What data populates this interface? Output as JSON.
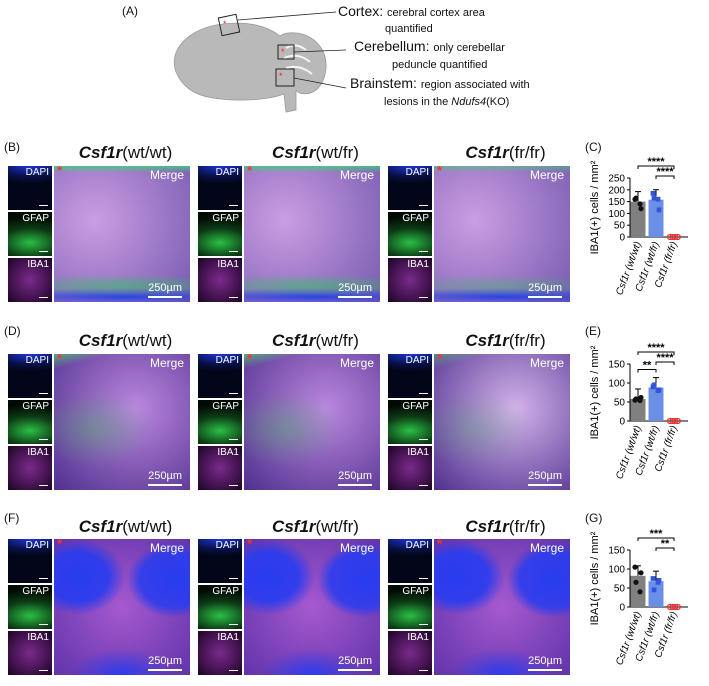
{
  "panel_letters": {
    "A": "(A)",
    "B": "(B)",
    "C": "(C)",
    "D": "(D)",
    "E": "(E)",
    "F": "(F)",
    "G": "(G)"
  },
  "brain_schematic": {
    "cortex": {
      "title": "Cortex:",
      "desc": "cerebral cortex area",
      "desc2": "quantified"
    },
    "cerebellum": {
      "title": "Cerebellum:",
      "desc": "only cerebellar",
      "desc2": "peduncle quantified"
    },
    "brainstem": {
      "title": "Brainstem:",
      "desc": "region associated with",
      "desc2_pre": "lesions in the ",
      "desc2_gene": "Ndufs4",
      "desc2_post": "(KO)"
    }
  },
  "genotypes": [
    {
      "gene": "Csf1r",
      "label": "(wt/wt)"
    },
    {
      "gene": "Csf1r",
      "label": "(wt/fr)"
    },
    {
      "gene": "Csf1r",
      "label": "(fr/fr)"
    }
  ],
  "channels": {
    "dapi": "DAPI",
    "gfap": "GFAP",
    "iba1": "IBA1",
    "merge": "Merge",
    "scale": "250µm",
    "star": "*"
  },
  "colors": {
    "dapi": "#1a2fd0",
    "gfap": "#2fd14a",
    "iba1": "#b73ad6",
    "merge_bg": "#3a1f8a",
    "bar_wt": "#808080",
    "bar_het": "#6c8fe6",
    "dot_ko": "#e83030"
  },
  "chart_data": [
    {
      "type": "bar",
      "panel": "C",
      "ylabel": "IBA1(+) cells / mm²",
      "ylim": [
        0,
        250
      ],
      "yticks": [
        0,
        50,
        100,
        150,
        200,
        250
      ],
      "categories": [
        "Csf1r (wt/wt)",
        "Csf1r (wt/fr)",
        "Csf1r (fr/fr)"
      ],
      "values": [
        150,
        158,
        0
      ],
      "points": [
        [
          160,
          120,
          165,
          140
        ],
        [
          185,
          115,
          165,
          160
        ],
        [
          0,
          0,
          0,
          0
        ]
      ],
      "significance": [
        {
          "from": 0,
          "to": 2,
          "label": "****"
        },
        {
          "from": 1,
          "to": 2,
          "label": "****"
        }
      ]
    },
    {
      "type": "bar",
      "panel": "E",
      "ylabel": "IBA1(+) cells / mm²",
      "ylim": [
        0,
        150
      ],
      "yticks": [
        0,
        50,
        100,
        150
      ],
      "categories": [
        "Csf1r (wt/wt)",
        "Csf1r (wt/fr)",
        "Csf1r (fr/fr)"
      ],
      "values": [
        58,
        88,
        0
      ],
      "points": [
        [
          55,
          62,
          58,
          54
        ],
        [
          90,
          82,
          95,
          80
        ],
        [
          0,
          0,
          0,
          0
        ]
      ],
      "significance": [
        {
          "from": 0,
          "to": 1,
          "label": "**"
        },
        {
          "from": 0,
          "to": 2,
          "label": "****"
        },
        {
          "from": 1,
          "to": 2,
          "label": "****"
        }
      ]
    },
    {
      "type": "bar",
      "panel": "G",
      "ylabel": "IBA1(+) cells / mm²",
      "ylim": [
        0,
        150
      ],
      "yticks": [
        0,
        50,
        100,
        150
      ],
      "categories": [
        "Csf1r (wt/wt)",
        "Csf1r (wt/fr)",
        "Csf1r (fr/fr)"
      ],
      "values": [
        82,
        68,
        0
      ],
      "points": [
        [
          105,
          90,
          65,
          40
        ],
        [
          75,
          70,
          45,
          65
        ],
        [
          0,
          0,
          0,
          0
        ]
      ],
      "significance": [
        {
          "from": 0,
          "to": 2,
          "label": "***"
        },
        {
          "from": 1,
          "to": 2,
          "label": "**"
        }
      ]
    }
  ]
}
